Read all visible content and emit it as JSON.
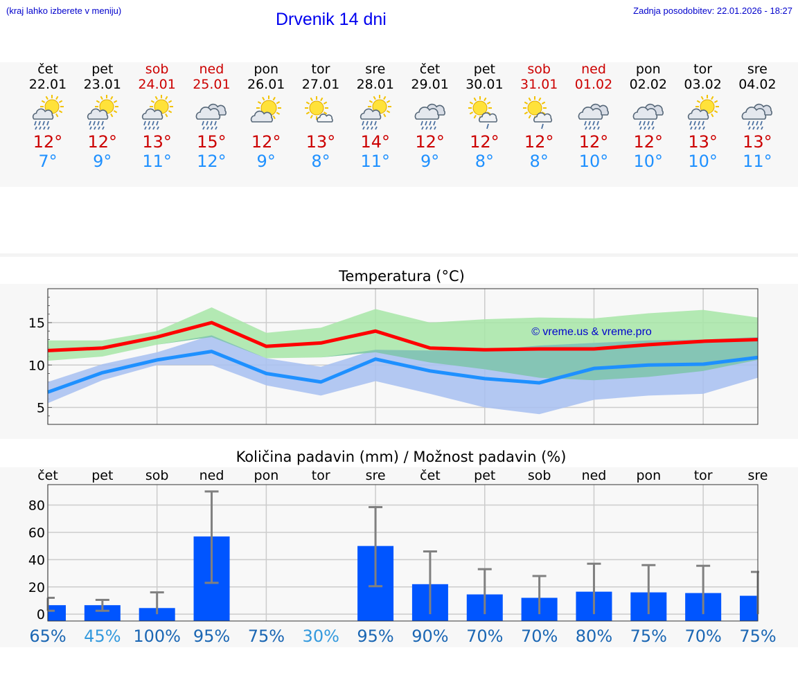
{
  "header": {
    "hint": "(kraj lahko izberete v meniju)",
    "title": "Drvenik 14 dni",
    "updated": "Zadnja posodobitev: 22.01.2026 - 18:27"
  },
  "days": [
    {
      "name": "čet",
      "date": "22.01",
      "icon": "sun-cloud-rain-icon",
      "max": "12°",
      "min": "7°",
      "weekend": false
    },
    {
      "name": "pet",
      "date": "23.01",
      "icon": "sun-cloud-rain-icon",
      "max": "12°",
      "min": "9°",
      "weekend": false
    },
    {
      "name": "sob",
      "date": "24.01",
      "icon": "sun-cloud-rain-icon",
      "max": "13°",
      "min": "11°",
      "weekend": true
    },
    {
      "name": "ned",
      "date": "25.01",
      "icon": "cloud-rain-icon",
      "max": "15°",
      "min": "12°",
      "weekend": true
    },
    {
      "name": "pon",
      "date": "26.01",
      "icon": "sun-cloud-icon",
      "max": "12°",
      "min": "9°",
      "weekend": false
    },
    {
      "name": "tor",
      "date": "27.01",
      "icon": "sun-small-cloud-icon",
      "max": "13°",
      "min": "8°",
      "weekend": false
    },
    {
      "name": "sre",
      "date": "28.01",
      "icon": "sun-cloud-rain-icon",
      "max": "14°",
      "min": "11°",
      "weekend": false
    },
    {
      "name": "čet",
      "date": "29.01",
      "icon": "cloud-rain-icon",
      "max": "12°",
      "min": "9°",
      "weekend": false
    },
    {
      "name": "pet",
      "date": "30.01",
      "icon": "sun-cloud-light-rain-icon",
      "max": "12°",
      "min": "8°",
      "weekend": false
    },
    {
      "name": "sob",
      "date": "31.01",
      "icon": "sun-cloud-light-rain-icon",
      "max": "12°",
      "min": "8°",
      "weekend": true
    },
    {
      "name": "ned",
      "date": "01.02",
      "icon": "cloud-rain-icon",
      "max": "12°",
      "min": "10°",
      "weekend": true
    },
    {
      "name": "pon",
      "date": "02.02",
      "icon": "cloud-rain-icon",
      "max": "12°",
      "min": "10°",
      "weekend": false
    },
    {
      "name": "tor",
      "date": "03.02",
      "icon": "sun-cloud-rain-icon",
      "max": "13°",
      "min": "10°",
      "weekend": false
    },
    {
      "name": "sre",
      "date": "04.02",
      "icon": "cloud-rain-icon",
      "max": "13°",
      "min": "11°",
      "weekend": false
    }
  ],
  "colors": {
    "max": "#ff0000",
    "min": "#1e90ff",
    "max_band": "#a8e6a8",
    "min_band": "#a8c0f0",
    "overlap": "#7cc4a8",
    "bar": "#0055ff",
    "errbar": "#808080",
    "weekend_text": "#cc0000"
  },
  "chart_data": [
    {
      "type": "line",
      "title": "Temperatura (°C)",
      "watermark": "© vreme.us & vreme.pro",
      "yticks": [
        "5",
        "10",
        "15"
      ],
      "ylim": [
        3,
        19
      ],
      "x": [
        0,
        1,
        2,
        3,
        4,
        5,
        6,
        7,
        8,
        9,
        10,
        11,
        12,
        13
      ],
      "series": [
        {
          "name": "max",
          "values": [
            11.7,
            12.0,
            13.3,
            15.0,
            12.2,
            12.6,
            14.0,
            12.0,
            11.8,
            11.9,
            11.9,
            12.4,
            12.8,
            13.0
          ],
          "band_low": [
            10.5,
            11.0,
            12.4,
            13.3,
            10.8,
            10.9,
            11.5,
            10.3,
            9.5,
            8.5,
            8.2,
            8.6,
            9.3,
            10.6
          ],
          "band_high": [
            12.9,
            12.9,
            14.0,
            16.8,
            13.8,
            14.4,
            16.6,
            15.0,
            15.4,
            15.6,
            15.5,
            16.1,
            16.5,
            15.6
          ]
        },
        {
          "name": "min",
          "values": [
            6.8,
            9.1,
            10.6,
            11.6,
            9.0,
            8.0,
            10.7,
            9.3,
            8.4,
            7.9,
            9.6,
            10.0,
            10.1,
            10.9
          ],
          "band_low": [
            5.5,
            8.2,
            10.0,
            10.0,
            7.6,
            6.4,
            8.1,
            6.6,
            5.0,
            4.2,
            5.9,
            6.4,
            6.6,
            8.5
          ],
          "band_high": [
            8.0,
            10.1,
            11.5,
            13.5,
            10.8,
            9.8,
            11.8,
            11.7,
            11.7,
            12.3,
            12.6,
            12.9,
            13.0,
            13.3
          ]
        }
      ]
    },
    {
      "type": "bar",
      "title": "Količina padavin (mm) / Možnost padavin (%)",
      "categories": [
        "čet",
        "pet",
        "sob",
        "ned",
        "pon",
        "tor",
        "sre",
        "čet",
        "pet",
        "sob",
        "ned",
        "pon",
        "tor",
        "sre"
      ],
      "yticks": [
        "0",
        "20",
        "40",
        "60",
        "80"
      ],
      "ylim": [
        -5,
        95
      ],
      "values": [
        6.6,
        6.6,
        4.5,
        57,
        0,
        0,
        50,
        22,
        14.5,
        12,
        16.5,
        16,
        15.5,
        13.5
      ],
      "err_low": [
        2.5,
        2.5,
        0,
        23,
        0,
        0,
        20.5,
        0,
        0,
        0,
        0,
        0,
        0,
        0
      ],
      "err_high": [
        12,
        10.5,
        16,
        90,
        0,
        0,
        78.5,
        46,
        33,
        28,
        37,
        36,
        35.5,
        31
      ],
      "probabilities": [
        "65%",
        "45%",
        "100%",
        "95%",
        "75%",
        "30%",
        "95%",
        "90%",
        "70%",
        "70%",
        "80%",
        "75%",
        "70%",
        "75%"
      ]
    }
  ]
}
